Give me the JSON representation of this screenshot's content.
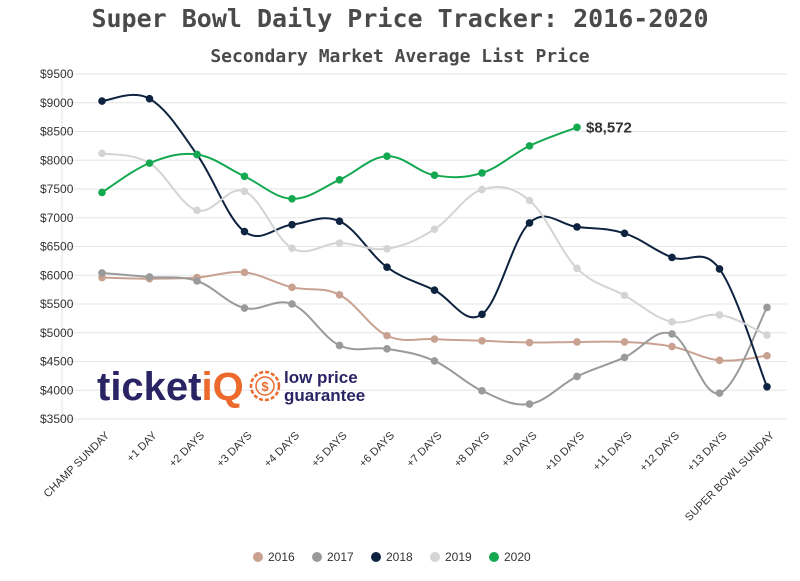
{
  "chart_data": {
    "type": "line",
    "title": "Super Bowl Daily Price Tracker: 2016-2020",
    "subtitle": "Secondary Market Average List Price",
    "xlabel": "",
    "ylabel": "",
    "categories": [
      "CHAMP SUNDAY",
      "+1 DAY",
      "+2 DAYS",
      "+3 DAYS",
      "+4 DAYS",
      "+5 DAYS",
      "+6 DAYS",
      "+7 DAYS",
      "+8 DAYS",
      "+9 DAYS",
      "+10 DAYS",
      "+11 DAYS",
      "+12 DAYS",
      "+13 DAYS",
      "SUPER BOWL SUNDAY"
    ],
    "ylim": [
      3500,
      9500
    ],
    "yticks": [
      "$3500",
      "$4000",
      "$4500",
      "$5000",
      "$5500",
      "$6000",
      "$6500",
      "$7000",
      "$7500",
      "$8000",
      "$8500",
      "$9000",
      "$9500"
    ],
    "yticks_values": [
      3500,
      4000,
      4500,
      5000,
      5500,
      6000,
      6500,
      7000,
      7500,
      8000,
      8500,
      9000,
      9500
    ],
    "grid": true,
    "legend_position": "bottom",
    "series": [
      {
        "name": "2016",
        "color": "#c9a191",
        "values": [
          5960,
          5940,
          5960,
          6050,
          5790,
          5660,
          4950,
          4890,
          4860,
          4830,
          4840,
          4840,
          4760,
          4520,
          4600
        ]
      },
      {
        "name": "2017",
        "color": "#9a9a9a",
        "values": [
          6040,
          5970,
          5900,
          5430,
          5500,
          4780,
          4720,
          4510,
          3990,
          3760,
          4240,
          4570,
          4980,
          3950,
          5440
        ]
      },
      {
        "name": "2018",
        "color": "#0e2340",
        "values": [
          9030,
          9070,
          8100,
          6760,
          6880,
          6940,
          6140,
          5740,
          5320,
          6910,
          6840,
          6730,
          6310,
          6110,
          4060
        ]
      },
      {
        "name": "2019",
        "color": "#d4d4d4",
        "values": [
          8120,
          7950,
          7130,
          7460,
          6470,
          6560,
          6460,
          6800,
          7490,
          7300,
          6120,
          5650,
          5190,
          5310,
          4960
        ]
      },
      {
        "name": "2020",
        "color": "#14a851",
        "values": [
          7440,
          7950,
          8100,
          7720,
          7330,
          7660,
          8070,
          7740,
          7780,
          8250,
          8572,
          null,
          null,
          null,
          null
        ]
      }
    ],
    "annotations": [
      {
        "text": "$8,572",
        "series": "2020",
        "category": "+10 DAYS"
      }
    ]
  },
  "logo": {
    "word_start": "ticket",
    "word_q": "iQ",
    "tag_line1": "low price",
    "tag_line2": "guarantee",
    "badge_icon": "dollar-badge-icon"
  }
}
